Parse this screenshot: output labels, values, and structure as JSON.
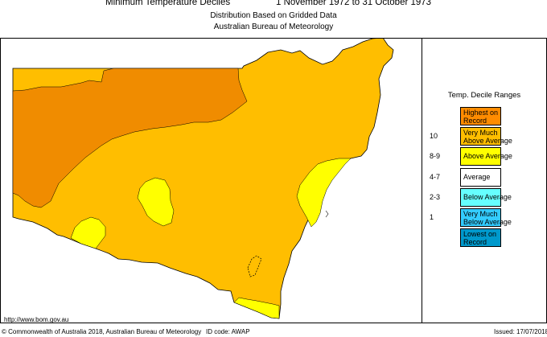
{
  "header": {
    "title_left": "Minimum Temperature Deciles",
    "title_right": "1 November 1972 to 31 October 1973",
    "subtitle_1": "Distribution Based on Gridded Data",
    "subtitle_2": "Australian Bureau of Meteorology"
  },
  "legend": {
    "title": "Temp. Decile Ranges",
    "items": [
      {
        "label": "Highest on\nRecord",
        "range": "",
        "color": "#ff8c00"
      },
      {
        "label": "Very Much\nAbove Average",
        "range": "10",
        "color": "#ffbe00"
      },
      {
        "label": "Above Average",
        "range": "8-9",
        "color": "#ffff00"
      },
      {
        "label": "Average",
        "range": "4-7",
        "color": "#ffffff"
      },
      {
        "label": "Below Average",
        "range": "2-3",
        "color": "#66ffff"
      },
      {
        "label": "Very Much\nBelow Average",
        "range": "1",
        "color": "#33ccff"
      },
      {
        "label": "Lowest on\nRecord",
        "range": "",
        "color": "#0099cc"
      }
    ]
  },
  "map": {
    "colors": {
      "highest": "#f08c00",
      "very_much_above": "#ffbe00",
      "above": "#ffff00",
      "outline": "#000000"
    }
  },
  "footer": {
    "url": "http://www.bom.gov.au",
    "copyright": "© Commonwealth of Australia 2018, Australian Bureau of Meteorology",
    "id_code": "ID code: AWAP",
    "issued": "Issued: 17/07/2018"
  }
}
